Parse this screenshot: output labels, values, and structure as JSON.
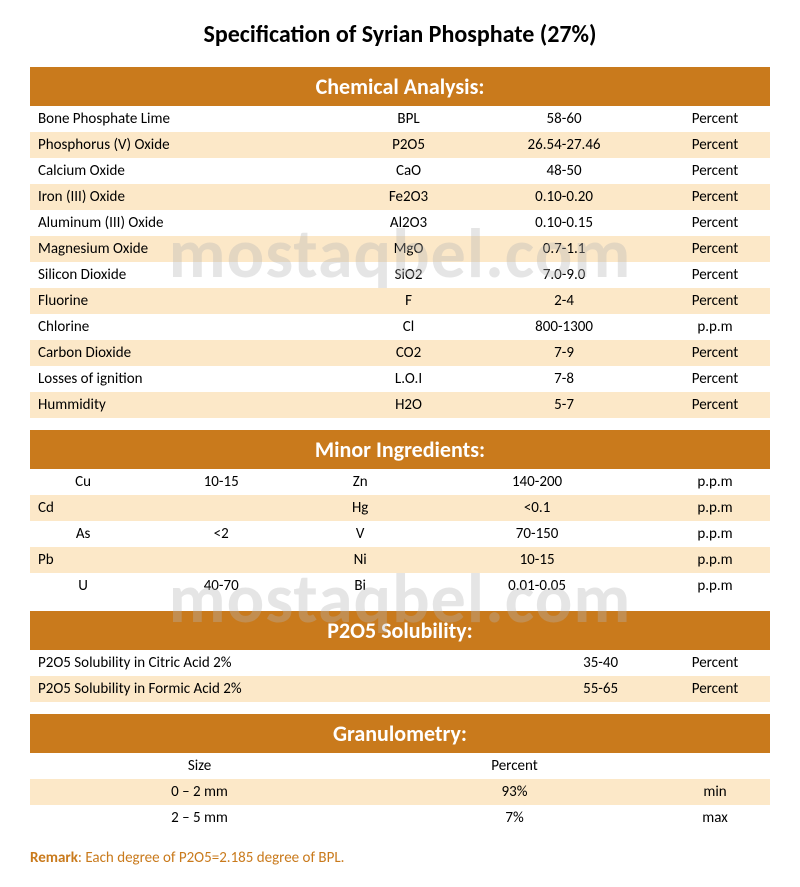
{
  "title": "Specification of Syrian Phosphate (27%)",
  "watermark": "mostaqbel.com",
  "colors": {
    "header_bg": "#c97a1c",
    "header_text": "#ffffff",
    "row_alt": "#fce8c8",
    "row_base": "#ffffff",
    "remark": "#c97a1c"
  },
  "sections": {
    "chemical": {
      "title": "Chemical Analysis:",
      "rows": [
        {
          "name": "Bone Phosphate Lime",
          "symbol": "BPL",
          "value": "58-60",
          "unit": "Percent"
        },
        {
          "name": "Phosphorus (V) Oxide",
          "symbol": "P2O5",
          "value": "26.54-27.46",
          "unit": "Percent"
        },
        {
          "name": "Calcium Oxide",
          "symbol": "CaO",
          "value": "48-50",
          "unit": "Percent"
        },
        {
          "name": "Iron (III) Oxide",
          "symbol": "Fe2O3",
          "value": "0.10-0.20",
          "unit": "Percent"
        },
        {
          "name": "Aluminum (III) Oxide",
          "symbol": "Al2O3",
          "value": "0.10-0.15",
          "unit": "Percent"
        },
        {
          "name": "Magnesium Oxide",
          "symbol": "MgO",
          "value": "0.7-1.1",
          "unit": "Percent"
        },
        {
          "name": "Silicon Dioxide",
          "symbol": "SiO2",
          "value": "7.0-9.0",
          "unit": "Percent"
        },
        {
          "name": "Fluorine",
          "symbol": "F",
          "value": "2-4",
          "unit": "Percent"
        },
        {
          "name": "Chlorine",
          "symbol": "Cl",
          "value": "800-1300",
          "unit": "p.p.m"
        },
        {
          "name": "Carbon Dioxide",
          "symbol": "CO2",
          "value": "7-9",
          "unit": "Percent"
        },
        {
          "name": "Losses of ignition",
          "symbol": "L.O.I",
          "value": "7-8",
          "unit": "Percent"
        },
        {
          "name": "Hummidity",
          "symbol": "H2O",
          "value": "5-7",
          "unit": "Percent"
        }
      ]
    },
    "minor": {
      "title": "Minor Ingredients:",
      "rows": [
        {
          "e1": "Cu",
          "v1": "10-15",
          "e2": "Zn",
          "v2": "140-200",
          "unit": "p.p.m"
        },
        {
          "e1": "Cd",
          "v1": "",
          "e2": "Hg",
          "v2": "<0.1",
          "unit": "p.p.m"
        },
        {
          "e1": "As",
          "v1": "<2",
          "e2": "V",
          "v2": "70-150",
          "unit": "p.p.m"
        },
        {
          "e1": "Pb",
          "v1": "",
          "e2": "Ni",
          "v2": "10-15",
          "unit": "p.p.m"
        },
        {
          "e1": "U",
          "v1": "40-70",
          "e2": "Bi",
          "v2": "0.01-0.05",
          "unit": "p.p.m"
        }
      ]
    },
    "solubility": {
      "title": "P2O5 Solubility:",
      "rows": [
        {
          "name": "P2O5 Solubility in Citric Acid 2%",
          "value": "35-40",
          "unit": "Percent"
        },
        {
          "name": "P2O5 Solubility in Formic Acid 2%",
          "value": "55-65",
          "unit": "Percent"
        }
      ]
    },
    "granulometry": {
      "title": "Granulometry:",
      "headers": {
        "c1": "Size",
        "c2": "Percent",
        "c3": ""
      },
      "rows": [
        {
          "size": "0 – 2 mm",
          "percent": "93%",
          "type": "min"
        },
        {
          "size": "2 – 5 mm",
          "percent": "7%",
          "type": "max"
        }
      ]
    }
  },
  "remark": {
    "label": "Remark",
    "text": ": Each degree of P2O5=2.185 degree of BPL."
  }
}
